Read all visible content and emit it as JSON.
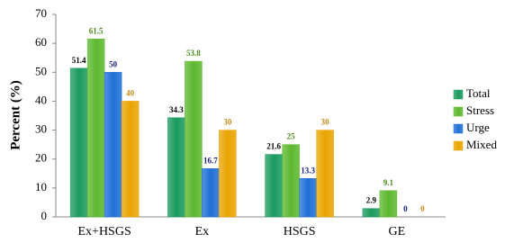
{
  "chart_data": {
    "type": "bar",
    "y_label": "Percent (%)",
    "categories": [
      "Ex+HSGS",
      "Ex",
      "HSGS",
      "GE"
    ],
    "series": [
      {
        "name": "Total",
        "color": "#1a9a5e",
        "label_color": "#000000",
        "values": [
          51.4,
          34.3,
          21.6,
          2.9
        ]
      },
      {
        "name": "Stress",
        "color": "#5cb82e",
        "label_color": "#4a8a1e",
        "values": [
          61.5,
          53.8,
          25,
          9.1
        ]
      },
      {
        "name": "Urge",
        "color": "#1f6fd6",
        "label_color": "#1a237e",
        "values": [
          50,
          16.7,
          13.3,
          0
        ]
      },
      {
        "name": "Mixed",
        "color": "#eaa400",
        "label_color": "#c88a1a",
        "values": [
          40,
          30,
          30,
          0
        ]
      }
    ],
    "ylim": [
      0,
      70
    ],
    "yticks": [
      0,
      10,
      20,
      30,
      40,
      50,
      60,
      70
    ]
  }
}
